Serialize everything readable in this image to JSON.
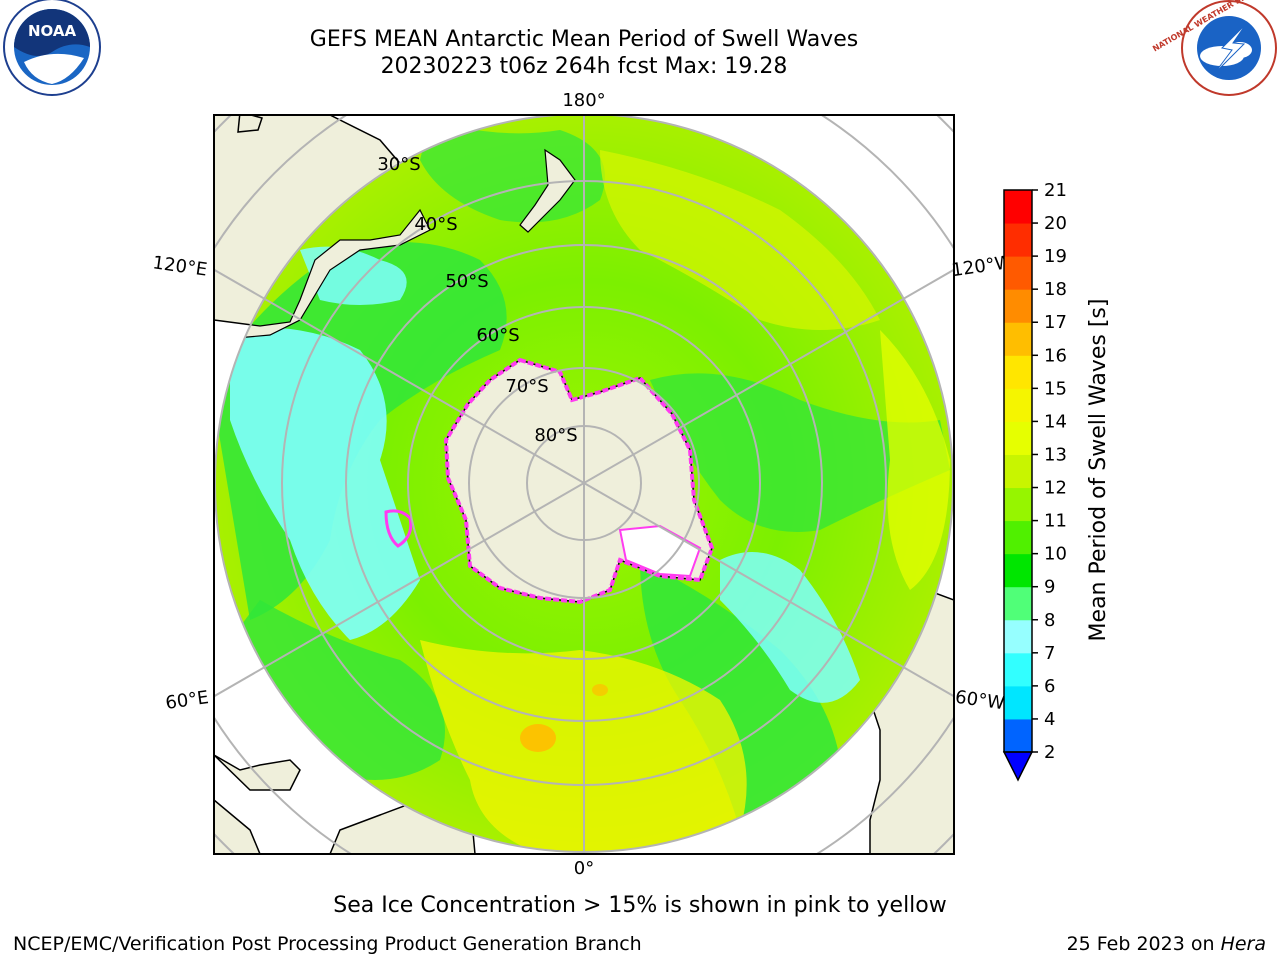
{
  "header": {
    "title_line1": "GEFS MEAN Antarctic Mean Period of Swell Waves",
    "title_line2": "20230223 t06z 264h fcst   Max: 19.28"
  },
  "logos": {
    "noaa_text": "NOAA",
    "nws_text": "NATIONAL WEATHER SERVICE"
  },
  "map": {
    "lon_labels": {
      "top": "180°",
      "bottom": "0°",
      "upper_left": "120°E",
      "upper_right": "120°W",
      "lower_left": "60°E",
      "lower_right": "60°W"
    },
    "lat_labels": [
      "30°S",
      "40°S",
      "50°S",
      "60°S",
      "70°S",
      "80°S"
    ]
  },
  "colorbar": {
    "title": "Mean Period of Swell Waves [s]",
    "ticks": [
      "2",
      "4",
      "6",
      "7",
      "8",
      "9",
      "10",
      "11",
      "12",
      "13",
      "14",
      "15",
      "16",
      "17",
      "18",
      "19",
      "20",
      "21"
    ],
    "colors": [
      "#0064ff",
      "#00e6ff",
      "#32ffff",
      "#96ffff",
      "#50ff78",
      "#00e600",
      "#50f000",
      "#96f500",
      "#c8f500",
      "#e6ff00",
      "#f5f500",
      "#ffe600",
      "#ffbe00",
      "#ff8c00",
      "#ff5a00",
      "#ff2d00",
      "#ff0000"
    ],
    "under_color": "#0000ff"
  },
  "note": "Sea Ice Concentration > 15% is shown in pink to yellow",
  "footer": {
    "left": "NCEP/EMC/Verification Post Processing Product Generation Branch",
    "right_date": "25 Feb 2023 on ",
    "right_host": "Hera"
  }
}
